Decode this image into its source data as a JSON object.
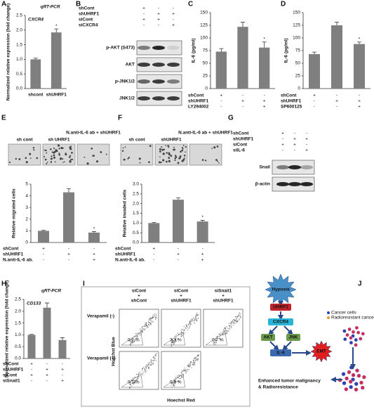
{
  "chart_data": [
    {
      "type": "bar",
      "label": "A",
      "title": "qRT-PCR",
      "annotation": "CXCR4",
      "ylabel": "Normalized relative expression (fold change)",
      "categories": [
        "shcont",
        "shUHRF1"
      ],
      "values": [
        1.0,
        1.92
      ],
      "errors": [
        0.04,
        0.12
      ],
      "stars": [
        null,
        "*"
      ],
      "color": "#7f7f7f",
      "ylim": [
        0,
        2.5
      ],
      "yticks": [
        {
          "value": 0,
          "label": "0.0"
        },
        {
          "value": 0.5,
          "label": "0.5"
        },
        {
          "value": 1,
          "label": "1.0"
        },
        {
          "value": 1.5,
          "label": "1.5"
        },
        {
          "value": 2,
          "label": "2.0"
        },
        {
          "value": 2.5,
          "label": "2.5"
        }
      ]
    },
    {
      "type": "bar",
      "label": "C",
      "ylabel": "IL-6 (pg/ml)",
      "values": [
        73,
        122,
        81
      ],
      "errors": [
        6,
        9,
        11
      ],
      "stars": [
        null,
        null,
        "*"
      ],
      "color": "#7f7f7f",
      "ylim": [
        0,
        150
      ],
      "yticks": [
        0,
        25,
        50,
        75,
        100,
        125,
        150
      ],
      "conditions": [
        {
          "name": "shCont",
          "values": [
            "+",
            "-",
            "-"
          ]
        },
        {
          "name": "shUHRF1",
          "values": [
            "-",
            "+",
            "+"
          ]
        },
        {
          "name": "LY294002",
          "values": [
            "-",
            "-",
            "+"
          ]
        }
      ]
    },
    {
      "type": "bar",
      "label": "D",
      "ylabel": "IL-6 (pg/ml)",
      "values": [
        68,
        125,
        88
      ],
      "errors": [
        4,
        6,
        4
      ],
      "stars": [
        null,
        null,
        "*"
      ],
      "color": "#7f7f7f",
      "ylim": [
        0,
        150
      ],
      "yticks": [
        0,
        25,
        50,
        75,
        100,
        125,
        150
      ],
      "conditions": [
        {
          "name": "shCont",
          "values": [
            "+",
            "-",
            "-"
          ]
        },
        {
          "name": "shUHRF1",
          "values": [
            "-",
            "+",
            "+"
          ]
        },
        {
          "name": "SP600125",
          "values": [
            "-",
            "-",
            "+"
          ]
        }
      ]
    },
    {
      "type": "bar",
      "label": "E",
      "ylabel": "Relative migrated cells",
      "image_labels": [
        "sh cont",
        "sh UHRF1",
        "N.anti-IL-6 ab + shUHRF1"
      ],
      "values": [
        1.0,
        4.3,
        0.85
      ],
      "errors": [
        0.04,
        0.3,
        0.08
      ],
      "stars": [
        null,
        null,
        "*"
      ],
      "color": "#7f7f7f",
      "ylim": [
        0,
        5
      ],
      "yticks": [
        0,
        1,
        2,
        3,
        4,
        5
      ],
      "conditions": [
        {
          "name": "shCont",
          "values": [
            "+",
            "-",
            "-"
          ]
        },
        {
          "name": "shUHRF1",
          "values": [
            "-",
            "+",
            "+"
          ]
        },
        {
          "name": "N.anti-IL-6 ab.",
          "values": [
            "-",
            "-",
            "+"
          ]
        }
      ]
    },
    {
      "type": "bar",
      "label": "F",
      "ylabel": "Relative invaded cells",
      "image_labels": [
        "sh cont",
        "shUHRF1",
        "N.anti-IL-6 ab + shUHRF1"
      ],
      "values": [
        1.0,
        2.2,
        1.08
      ],
      "errors": [
        0.03,
        0.09,
        0.06
      ],
      "stars": [
        null,
        null,
        "*"
      ],
      "color": "#7f7f7f",
      "ylim": [
        0,
        3
      ],
      "yticks": [
        {
          "value": 0,
          "label": "0.0"
        },
        {
          "value": 0.5,
          "label": "0.5"
        },
        {
          "value": 1,
          "label": "1.0"
        },
        {
          "value": 1.5,
          "label": "1.5"
        },
        {
          "value": 2,
          "label": "2.0"
        },
        {
          "value": 2.5,
          "label": "2.5"
        },
        {
          "value": 3,
          "label": "3.0"
        }
      ],
      "conditions": [
        {
          "name": "shCont",
          "values": [
            "+",
            "-",
            "-"
          ]
        },
        {
          "name": "shUHRF1",
          "values": [
            "-",
            "+",
            "+"
          ]
        },
        {
          "name": "N.anti-IL-6 ab.",
          "values": [
            "-",
            "-",
            "+"
          ]
        }
      ]
    },
    {
      "type": "bar",
      "label": "H",
      "title": "qRT-PCR",
      "annotation": "CD133",
      "ylabel": "Normalized relative expression (fold change)",
      "values": [
        1.0,
        2.15,
        0.78
      ],
      "errors": [
        0.02,
        0.2,
        0.1
      ],
      "stars": [
        null,
        null,
        null
      ],
      "color": "#7f7f7f",
      "ylim": [
        0,
        2.5
      ],
      "yticks": [
        {
          "value": 0,
          "label": "0.0"
        },
        {
          "value": 0.5,
          "label": "0.5"
        },
        {
          "value": 1,
          "label": "1.0"
        },
        {
          "value": 1.5,
          "label": "1.5"
        },
        {
          "value": 2,
          "label": "2.0"
        },
        {
          "value": 2.5,
          "label": "2.5"
        }
      ],
      "conditions": [
        {
          "name": "shCont",
          "values": [
            "+",
            "-",
            "-"
          ]
        },
        {
          "name": "shUHRF1",
          "values": [
            "-",
            "+",
            "+"
          ]
        },
        {
          "name": "siCont",
          "values": [
            "+",
            "+",
            "-"
          ]
        },
        {
          "name": "siSnail1",
          "values": [
            "-",
            "-",
            "+"
          ]
        }
      ]
    }
  ],
  "blots": [
    {
      "label": "B",
      "conditions": [
        {
          "name": "shCont",
          "values": [
            "+",
            "-",
            "-"
          ]
        },
        {
          "name": "shUHRF1",
          "values": [
            "-",
            "+",
            "+"
          ]
        },
        {
          "name": "siCont",
          "values": [
            "+",
            "+",
            "-"
          ]
        },
        {
          "name": "siCXCR4",
          "values": [
            "-",
            "-",
            "+"
          ]
        }
      ],
      "bands": [
        "p-AKT (S473)",
        "AKT",
        "p-JNK1/2",
        "JNK1/2"
      ]
    },
    {
      "label": "G",
      "conditions": [
        {
          "name": "shCont",
          "values": [
            "+",
            "-",
            "-"
          ]
        },
        {
          "name": "shUHRF1",
          "values": [
            "-",
            "+",
            "+"
          ]
        },
        {
          "name": "siCont",
          "values": [
            "+",
            "+",
            "-"
          ]
        },
        {
          "name": "siIL-6",
          "values": [
            "-",
            "-",
            "+"
          ]
        }
      ],
      "bands": [
        "Snail",
        "β-actin"
      ]
    }
  ],
  "flow": {
    "label": "I",
    "columns": [
      [
        "siCont",
        "+",
        "shCont"
      ],
      [
        "siCont",
        "+",
        "shUHRF1"
      ],
      [
        "siSnail1",
        "+",
        "shUHRF1"
      ]
    ],
    "rows": [
      "Verapamil (-)",
      "Verapamil (+)"
    ],
    "percentages": [
      [
        "0.2 %",
        "3.1 %",
        "0.7 %"
      ],
      [
        "0.1 %",
        "0.8 %"
      ]
    ],
    "ylabel": "Hoechst Blue",
    "xlabel": "Hoechst Red"
  },
  "diagram": {
    "label": "J",
    "nodes": [
      "Hypoxia",
      "UHRF1",
      "CXCR4",
      "AKT",
      "JNK",
      "IL-6",
      "EMT"
    ],
    "outcome": [
      "Enhanced tumor malignancy",
      "& Radioresistance"
    ],
    "legend": [
      "Cancer cells",
      "Radioresistant cancer stem cells"
    ]
  }
}
